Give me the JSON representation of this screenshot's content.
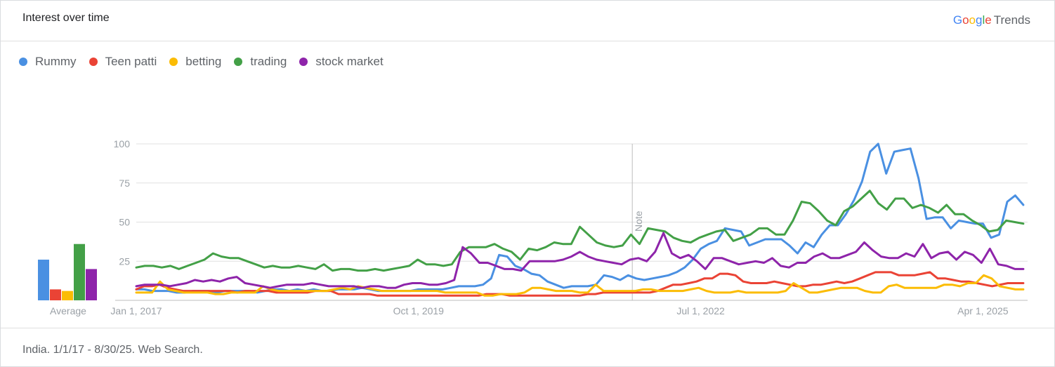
{
  "header": {
    "title": "Interest over time",
    "brand": {
      "google": "Google",
      "trends": "Trends"
    }
  },
  "footer": {
    "text": "India. 1/1/17 - 8/30/25. Web Search."
  },
  "chart_data": {
    "type": "line",
    "xlabel": "",
    "ylabel": "",
    "ylim": [
      0,
      100
    ],
    "y_ticks": [
      25,
      50,
      75,
      100
    ],
    "x_tick_labels": [
      "Jan 1, 2017",
      "Oct 1, 2019",
      "Jul 1, 2022",
      "Apr 1, 2025"
    ],
    "annotation": {
      "label": "Note",
      "x": "2021-11"
    },
    "average_label": "Average",
    "x_start": "2017-01",
    "series": [
      {
        "name": "Rummy",
        "color": "#4a90e2",
        "average": 26,
        "values": [
          7,
          7,
          6,
          6,
          6,
          5,
          5,
          6,
          6,
          6,
          5,
          6,
          6,
          6,
          6,
          5,
          6,
          7,
          7,
          6,
          7,
          6,
          7,
          6,
          6,
          7,
          7,
          7,
          8,
          7,
          6,
          6,
          6,
          6,
          6,
          7,
          7,
          7,
          7,
          8,
          9,
          9,
          9,
          10,
          14,
          29,
          28,
          22,
          20,
          17,
          16,
          12,
          10,
          8,
          9,
          9,
          9,
          10,
          16,
          15,
          13,
          16,
          14,
          13,
          14,
          15,
          16,
          18,
          21,
          26,
          33,
          36,
          38,
          46,
          45,
          44,
          35,
          37,
          39,
          39,
          39,
          35,
          30,
          37,
          34,
          42,
          48,
          48,
          55,
          64,
          76,
          95,
          100,
          81,
          95,
          96,
          97,
          78,
          52,
          53,
          53,
          46,
          51,
          50,
          49,
          49,
          40,
          42,
          63,
          67,
          61
        ]
      },
      {
        "name": "Teen patti",
        "color": "#ea4335",
        "average": 7,
        "values": [
          7,
          9,
          9,
          10,
          8,
          7,
          6,
          6,
          6,
          6,
          6,
          6,
          6,
          5,
          6,
          6,
          6,
          6,
          5,
          5,
          5,
          5,
          5,
          6,
          6,
          6,
          4,
          4,
          4,
          4,
          4,
          3,
          3,
          3,
          3,
          3,
          3,
          3,
          3,
          3,
          3,
          3,
          3,
          3,
          3,
          4,
          4,
          4,
          3,
          3,
          3,
          3,
          3,
          3,
          3,
          3,
          3,
          3,
          4,
          4,
          5,
          5,
          5,
          5,
          5,
          5,
          5,
          6,
          8,
          10,
          10,
          11,
          12,
          14,
          14,
          17,
          17,
          16,
          12,
          11,
          11,
          11,
          12,
          11,
          10,
          9,
          9,
          10,
          10,
          11,
          12,
          11,
          12,
          14,
          16,
          18,
          18,
          18,
          16,
          16,
          16,
          17,
          18,
          14,
          14,
          13,
          12,
          12,
          11,
          10,
          9,
          10,
          11,
          11,
          11
        ]
      },
      {
        "name": "betting",
        "color": "#fbbc04",
        "average": 6,
        "values": [
          5,
          5,
          5,
          12,
          7,
          6,
          5,
          5,
          5,
          5,
          4,
          4,
          5,
          5,
          5,
          5,
          9,
          7,
          6,
          6,
          6,
          6,
          6,
          6,
          6,
          7,
          8,
          7,
          9,
          8,
          7,
          6,
          6,
          6,
          6,
          6,
          6,
          6,
          6,
          5,
          5,
          5,
          5,
          5,
          3,
          3,
          4,
          4,
          4,
          5,
          8,
          8,
          7,
          6,
          6,
          6,
          5,
          5,
          10,
          6,
          6,
          6,
          6,
          6,
          7,
          7,
          6,
          6,
          6,
          6,
          7,
          8,
          6,
          5,
          5,
          5,
          6,
          5,
          5,
          5,
          5,
          5,
          6,
          11,
          8,
          5,
          5,
          6,
          7,
          8,
          8,
          8,
          6,
          5,
          5,
          9,
          10,
          8,
          8,
          8,
          8,
          8,
          10,
          10,
          9,
          11,
          11,
          16,
          14,
          9,
          8,
          7,
          7
        ]
      },
      {
        "name": "trading",
        "color": "#43a047",
        "average": 36,
        "values": [
          21,
          22,
          22,
          21,
          22,
          20,
          22,
          24,
          26,
          30,
          28,
          27,
          27,
          25,
          23,
          21,
          22,
          21,
          21,
          22,
          21,
          20,
          23,
          19,
          20,
          20,
          19,
          19,
          20,
          19,
          20,
          21,
          22,
          26,
          23,
          23,
          22,
          23,
          31,
          34,
          34,
          34,
          36,
          33,
          31,
          26,
          33,
          32,
          34,
          37,
          36,
          36,
          47,
          42,
          37,
          35,
          34,
          35,
          42,
          36,
          46,
          45,
          44,
          40,
          38,
          37,
          40,
          42,
          44,
          45,
          38,
          40,
          42,
          46,
          46,
          42,
          42,
          51,
          63,
          62,
          57,
          51,
          48,
          57,
          60,
          65,
          70,
          62,
          58,
          65,
          65,
          59,
          61,
          59,
          56,
          61,
          55,
          55,
          51,
          48,
          44,
          45,
          51,
          50,
          49
        ]
      },
      {
        "name": "stock market",
        "color": "#8e24aa",
        "average": 20,
        "values": [
          9,
          10,
          10,
          10,
          9,
          10,
          11,
          13,
          12,
          13,
          12,
          14,
          15,
          11,
          10,
          9,
          8,
          9,
          10,
          10,
          10,
          11,
          10,
          9,
          9,
          9,
          9,
          8,
          9,
          9,
          8,
          8,
          10,
          11,
          11,
          10,
          10,
          11,
          13,
          34,
          30,
          24,
          24,
          22,
          20,
          20,
          19,
          25,
          25,
          25,
          25,
          26,
          28,
          31,
          28,
          26,
          25,
          24,
          23,
          26,
          27,
          25,
          31,
          43,
          30,
          27,
          29,
          25,
          20,
          27,
          27,
          25,
          23,
          24,
          25,
          24,
          27,
          22,
          21,
          24,
          24,
          28,
          30,
          27,
          27,
          29,
          31,
          37,
          32,
          28,
          27,
          27,
          30,
          28,
          36,
          27,
          30,
          31,
          26,
          31,
          29,
          24,
          33,
          23,
          22,
          20,
          20
        ]
      }
    ]
  }
}
